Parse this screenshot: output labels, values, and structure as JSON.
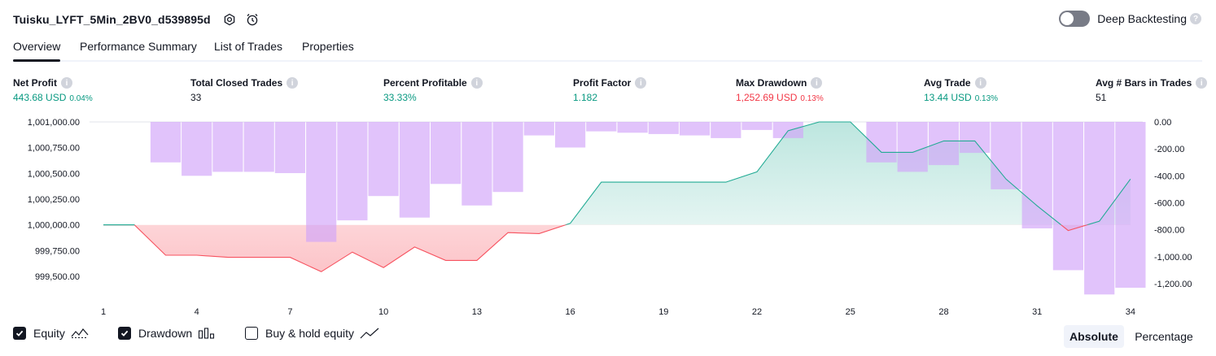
{
  "header": {
    "strategy_name": "Tuisku_LYFT_5Min_2BV0_d539895d",
    "deep_backtesting_label": "Deep Backtesting"
  },
  "tabs": [
    {
      "label": "Overview"
    },
    {
      "label": "Performance Summary"
    },
    {
      "label": "List of Trades"
    },
    {
      "label": "Properties"
    }
  ],
  "metrics": [
    {
      "label": "Net Profit",
      "value": "443.68 USD",
      "pct": "0.04%",
      "tone": "pos"
    },
    {
      "label": "Total Closed Trades",
      "value": "33",
      "pct": "",
      "tone": "neu"
    },
    {
      "label": "Percent Profitable",
      "value": "33.33%",
      "pct": "",
      "tone": "pos"
    },
    {
      "label": "Profit Factor",
      "value": "1.182",
      "pct": "",
      "tone": "pos"
    },
    {
      "label": "Max Drawdown",
      "value": "1,252.69 USD",
      "pct": "0.13%",
      "tone": "neg"
    },
    {
      "label": "Avg Trade",
      "value": "13.44 USD",
      "pct": "0.13%",
      "tone": "pos"
    },
    {
      "label": "Avg # Bars in Trades",
      "value": "51",
      "pct": "",
      "tone": "neu"
    }
  ],
  "chart_data": {
    "type": "area",
    "x": [
      1,
      2,
      3,
      4,
      5,
      6,
      7,
      8,
      9,
      10,
      11,
      12,
      13,
      14,
      15,
      16,
      17,
      18,
      19,
      20,
      21,
      22,
      23,
      24,
      25,
      26,
      27,
      28,
      29,
      30,
      31,
      32,
      33,
      34
    ],
    "x_ticks": [
      1,
      4,
      7,
      10,
      13,
      16,
      19,
      22,
      25,
      28,
      31,
      34
    ],
    "baseline": 1000000,
    "left_axis": {
      "ylim": [
        999380,
        1001010
      ],
      "ticks": [
        1001000,
        1000750,
        1000500,
        1000250,
        1000000,
        999750,
        999500
      ],
      "tick_labels": [
        "1,001,000.00",
        "1,000,750.00",
        "1,000,500.00",
        "1,000,250.00",
        "1,000,000.00",
        "999,750.00",
        "999,500.00"
      ]
    },
    "right_axis": {
      "ylim": [
        -1320,
        0
      ],
      "ticks": [
        0,
        -200,
        -400,
        -600,
        -800,
        -1000,
        -1200
      ],
      "tick_labels": [
        "0.00",
        "-200.00",
        "-400.00",
        "-600.00",
        "-800.00",
        "-1,000.00",
        "-1,200.00"
      ]
    },
    "series": [
      {
        "name": "Equity",
        "type": "line",
        "axis": "left",
        "values": [
          1000000,
          1000000,
          999705,
          999705,
          999685,
          999685,
          999685,
          999545,
          999735,
          999585,
          999785,
          999655,
          999655,
          999925,
          999915,
          1000015,
          1000415,
          1000415,
          1000415,
          1000415,
          1000415,
          1000515,
          1000915,
          1001000,
          1001000,
          1000705,
          1000705,
          1000815,
          1000815,
          1000445,
          1000185,
          999945,
          1000035,
          1000445
        ],
        "color_up": "#22ab94",
        "color_down": "#f7525f"
      },
      {
        "name": "Drawdown",
        "type": "bar",
        "axis": "right",
        "values": [
          0,
          0,
          -300,
          -400,
          -370,
          -370,
          -380,
          -890,
          -730,
          -550,
          -710,
          -460,
          -620,
          -520,
          -100,
          -190,
          -70,
          -80,
          -90,
          -100,
          -120,
          -60,
          -120,
          0,
          0,
          -300,
          -370,
          -320,
          -230,
          -500,
          -790,
          -1100,
          -1280,
          -1230
        ],
        "color": "#d1a4f9"
      }
    ]
  },
  "legend": [
    {
      "label": "Equity",
      "checked": true,
      "icon": "equity-line-icon"
    },
    {
      "label": "Drawdown",
      "checked": true,
      "icon": "drawdown-bars-icon"
    },
    {
      "label": "Buy & hold equity",
      "checked": false,
      "icon": "buy-hold-line-icon"
    }
  ],
  "scale_toggle": {
    "options": [
      "Absolute",
      "Percentage"
    ],
    "selected": "Absolute"
  }
}
